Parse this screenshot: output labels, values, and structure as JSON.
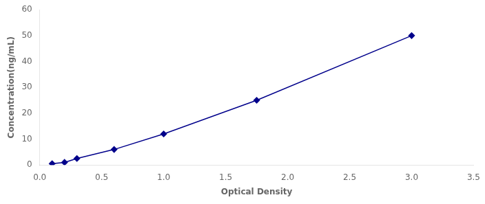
{
  "chart_data": {
    "type": "line",
    "x": [
      0.1,
      0.2,
      0.3,
      0.6,
      1.0,
      1.75,
      3.0
    ],
    "values": [
      0.5,
      1.0,
      2.5,
      6.0,
      12.0,
      25.0,
      50.0
    ],
    "color": "#00008B",
    "marker": "diamond",
    "xlabel": "Optical Density",
    "ylabel": "Concentration(ng/mL)",
    "xlim": [
      0,
      3.5
    ],
    "ylim": [
      0,
      60
    ],
    "xticks": [
      {
        "value": 0,
        "label": "0.0"
      },
      0.5,
      {
        "value": 1,
        "label": "1.0"
      },
      1.5,
      {
        "value": 2,
        "label": "2.0"
      },
      2.5,
      {
        "value": 3,
        "label": "3.0"
      },
      3.5
    ],
    "yticks": [
      0,
      10,
      20,
      30,
      40,
      50,
      60
    ],
    "grid": false
  }
}
